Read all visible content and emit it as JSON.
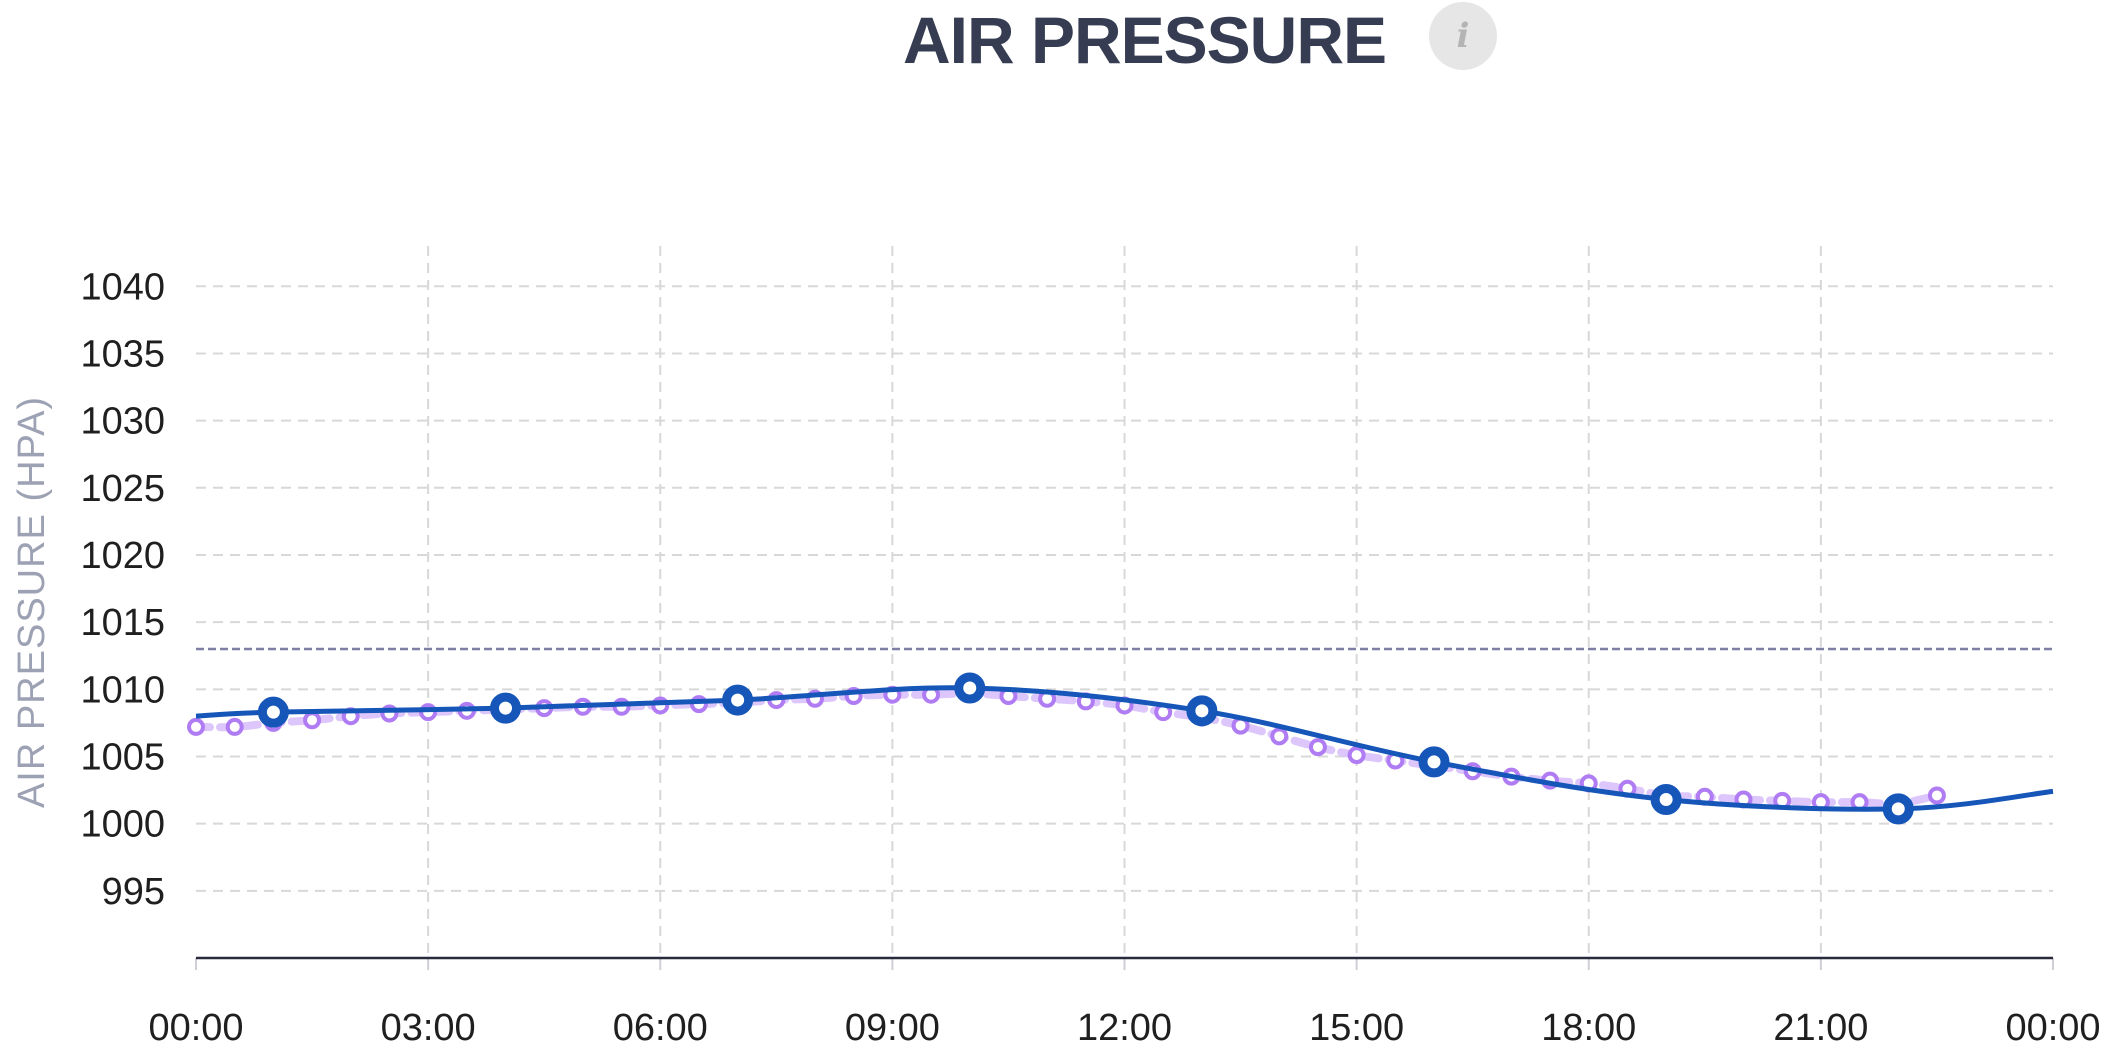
{
  "header": {
    "title": "AIR PRESSURE",
    "info_icon": "info-icon",
    "info_glyph": "i"
  },
  "chart_data": {
    "type": "line",
    "ylabel": "AIR PRESSURE (HPA)",
    "xlabel": "",
    "ylim": [
      990,
      1043
    ],
    "xlim_hours": [
      0,
      24
    ],
    "yticks": [
      995,
      1000,
      1005,
      1010,
      1015,
      1020,
      1025,
      1030,
      1035,
      1040
    ],
    "xticks": [
      "00:00",
      "03:00",
      "06:00",
      "09:00",
      "12:00",
      "15:00",
      "18:00",
      "21:00",
      "00:00"
    ],
    "grid": true,
    "reference_line": {
      "value": 1013,
      "color": "#7f7fa3"
    },
    "series": [
      {
        "type": "line",
        "color": "#1556b8",
        "x_hours": [
          0,
          1,
          4,
          7,
          10,
          13,
          16,
          19,
          22,
          24
        ],
        "values": [
          1008.0,
          1008.3,
          1008.6,
          1009.2,
          1010.1,
          1008.4,
          1004.6,
          1001.8,
          1001.1,
          1002.4
        ],
        "markers_at_hours": [
          1,
          4,
          7,
          10,
          13,
          16,
          19,
          22
        ]
      },
      {
        "type": "dotted",
        "color": "#b07cf3",
        "x_hours": [
          0,
          0.5,
          1,
          1.5,
          2,
          2.5,
          3,
          3.5,
          4,
          4.5,
          5,
          5.5,
          6,
          6.5,
          7,
          7.5,
          8,
          8.5,
          9,
          9.5,
          10,
          10.5,
          11,
          11.5,
          12,
          12.5,
          13,
          13.5,
          14,
          14.5,
          15,
          15.5,
          16,
          16.5,
          17,
          17.5,
          18,
          18.5,
          19,
          19.5,
          20,
          20.5,
          21,
          21.5,
          22,
          22.5
        ],
        "values": [
          1007.2,
          1007.2,
          1007.5,
          1007.7,
          1008.0,
          1008.2,
          1008.3,
          1008.4,
          1008.5,
          1008.6,
          1008.7,
          1008.7,
          1008.8,
          1008.9,
          1009.0,
          1009.2,
          1009.3,
          1009.5,
          1009.6,
          1009.6,
          1009.7,
          1009.5,
          1009.3,
          1009.1,
          1008.8,
          1008.3,
          1007.9,
          1007.3,
          1006.5,
          1005.7,
          1005.1,
          1004.7,
          1004.3,
          1003.9,
          1003.5,
          1003.2,
          1003.0,
          1002.6,
          1002.1,
          1002.0,
          1001.8,
          1001.7,
          1001.6,
          1001.6,
          1001.5,
          1002.1
        ]
      }
    ]
  }
}
